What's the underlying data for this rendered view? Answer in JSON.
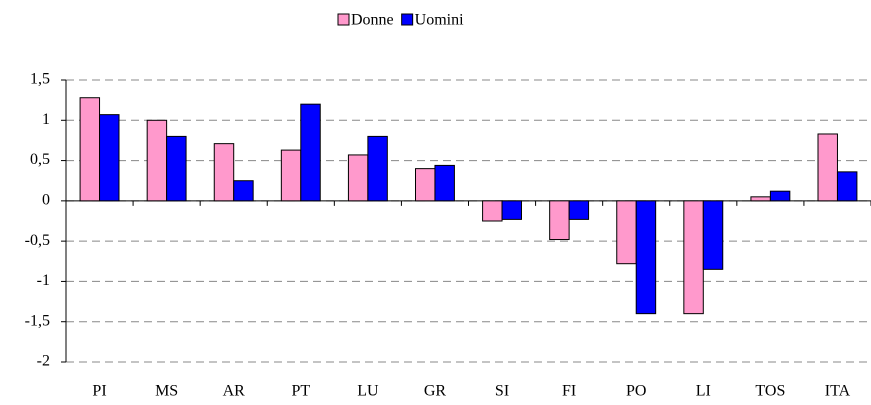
{
  "chart_data": {
    "type": "bar",
    "categories": [
      "PI",
      "MS",
      "AR",
      "PT",
      "LU",
      "GR",
      "SI",
      "FI",
      "PO",
      "LI",
      "TOS",
      "ITA"
    ],
    "series": [
      {
        "name": "Donne",
        "color": "#ff99cc",
        "values": [
          1.28,
          1.0,
          0.71,
          0.63,
          0.57,
          0.4,
          -0.25,
          -0.48,
          -0.78,
          -1.4,
          0.05,
          0.83
        ]
      },
      {
        "name": "Uomini",
        "color": "#0000ff",
        "values": [
          1.07,
          0.8,
          0.25,
          1.2,
          0.8,
          0.44,
          -0.23,
          -0.23,
          -1.4,
          -0.85,
          0.12,
          0.36
        ]
      }
    ],
    "ylim": [
      -2,
      1.5
    ],
    "yticks": [
      {
        "value": 1.5,
        "label": "1,5"
      },
      1,
      {
        "value": 0.5,
        "label": "0,5"
      },
      0,
      {
        "value": -0.5,
        "label": "-0,5"
      },
      -1,
      {
        "value": -1.5,
        "label": "-1,5"
      },
      -2
    ],
    "grid": true,
    "legend": "top"
  }
}
